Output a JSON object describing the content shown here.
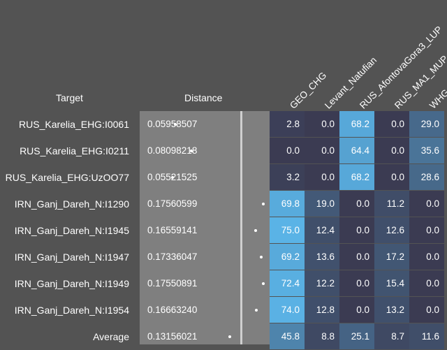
{
  "header": {
    "target_label": "Target",
    "distance_label": "Distance"
  },
  "populations": [
    "GEO_CHG",
    "Levant_Natufian",
    "RUS_AfontovaGora3_LUP",
    "RUS_MA1_MUP",
    "WHG"
  ],
  "rows": [
    {
      "target": "RUS_Karelia_EHG:I0061",
      "distance": "0.05958507",
      "distance_value": 0.05958507,
      "values": [
        "2.8",
        "0.0",
        "68.2",
        "0.0",
        "29.0"
      ]
    },
    {
      "target": "RUS_Karelia_EHG:I0211",
      "distance": "0.08098218",
      "distance_value": 0.08098218,
      "values": [
        "0.0",
        "0.0",
        "64.4",
        "0.0",
        "35.6"
      ]
    },
    {
      "target": "RUS_Karelia_EHG:UzOO77",
      "distance": "0.05521525",
      "distance_value": 0.05521525,
      "values": [
        "3.2",
        "0.0",
        "68.2",
        "0.0",
        "28.6"
      ]
    },
    {
      "target": "IRN_Ganj_Dareh_N:I1290",
      "distance": "0.17560599",
      "distance_value": 0.17560599,
      "values": [
        "69.8",
        "19.0",
        "0.0",
        "11.2",
        "0.0"
      ]
    },
    {
      "target": "IRN_Ganj_Dareh_N:I1945",
      "distance": "0.16559141",
      "distance_value": 0.16559141,
      "values": [
        "75.0",
        "12.4",
        "0.0",
        "12.6",
        "0.0"
      ]
    },
    {
      "target": "IRN_Ganj_Dareh_N:I1947",
      "distance": "0.17336047",
      "distance_value": 0.17336047,
      "values": [
        "69.2",
        "13.6",
        "0.0",
        "17.2",
        "0.0"
      ]
    },
    {
      "target": "IRN_Ganj_Dareh_N:I1949",
      "distance": "0.17550891",
      "distance_value": 0.17550891,
      "values": [
        "72.4",
        "12.2",
        "0.0",
        "15.4",
        "0.0"
      ]
    },
    {
      "target": "IRN_Ganj_Dareh_N:I1954",
      "distance": "0.16663240",
      "distance_value": 0.1666324,
      "values": [
        "74.0",
        "12.8",
        "0.0",
        "13.2",
        "0.0"
      ]
    },
    {
      "target": "Average",
      "distance": "0.13156021",
      "distance_value": 0.13156021,
      "values": [
        "45.8",
        "8.8",
        "25.1",
        "8.7",
        "11.6"
      ]
    }
  ],
  "colors": {
    "background": "#535353",
    "distance_panel": "#7f7f7f",
    "zero": "#3b3b52",
    "high": "#5ab3e6"
  }
}
